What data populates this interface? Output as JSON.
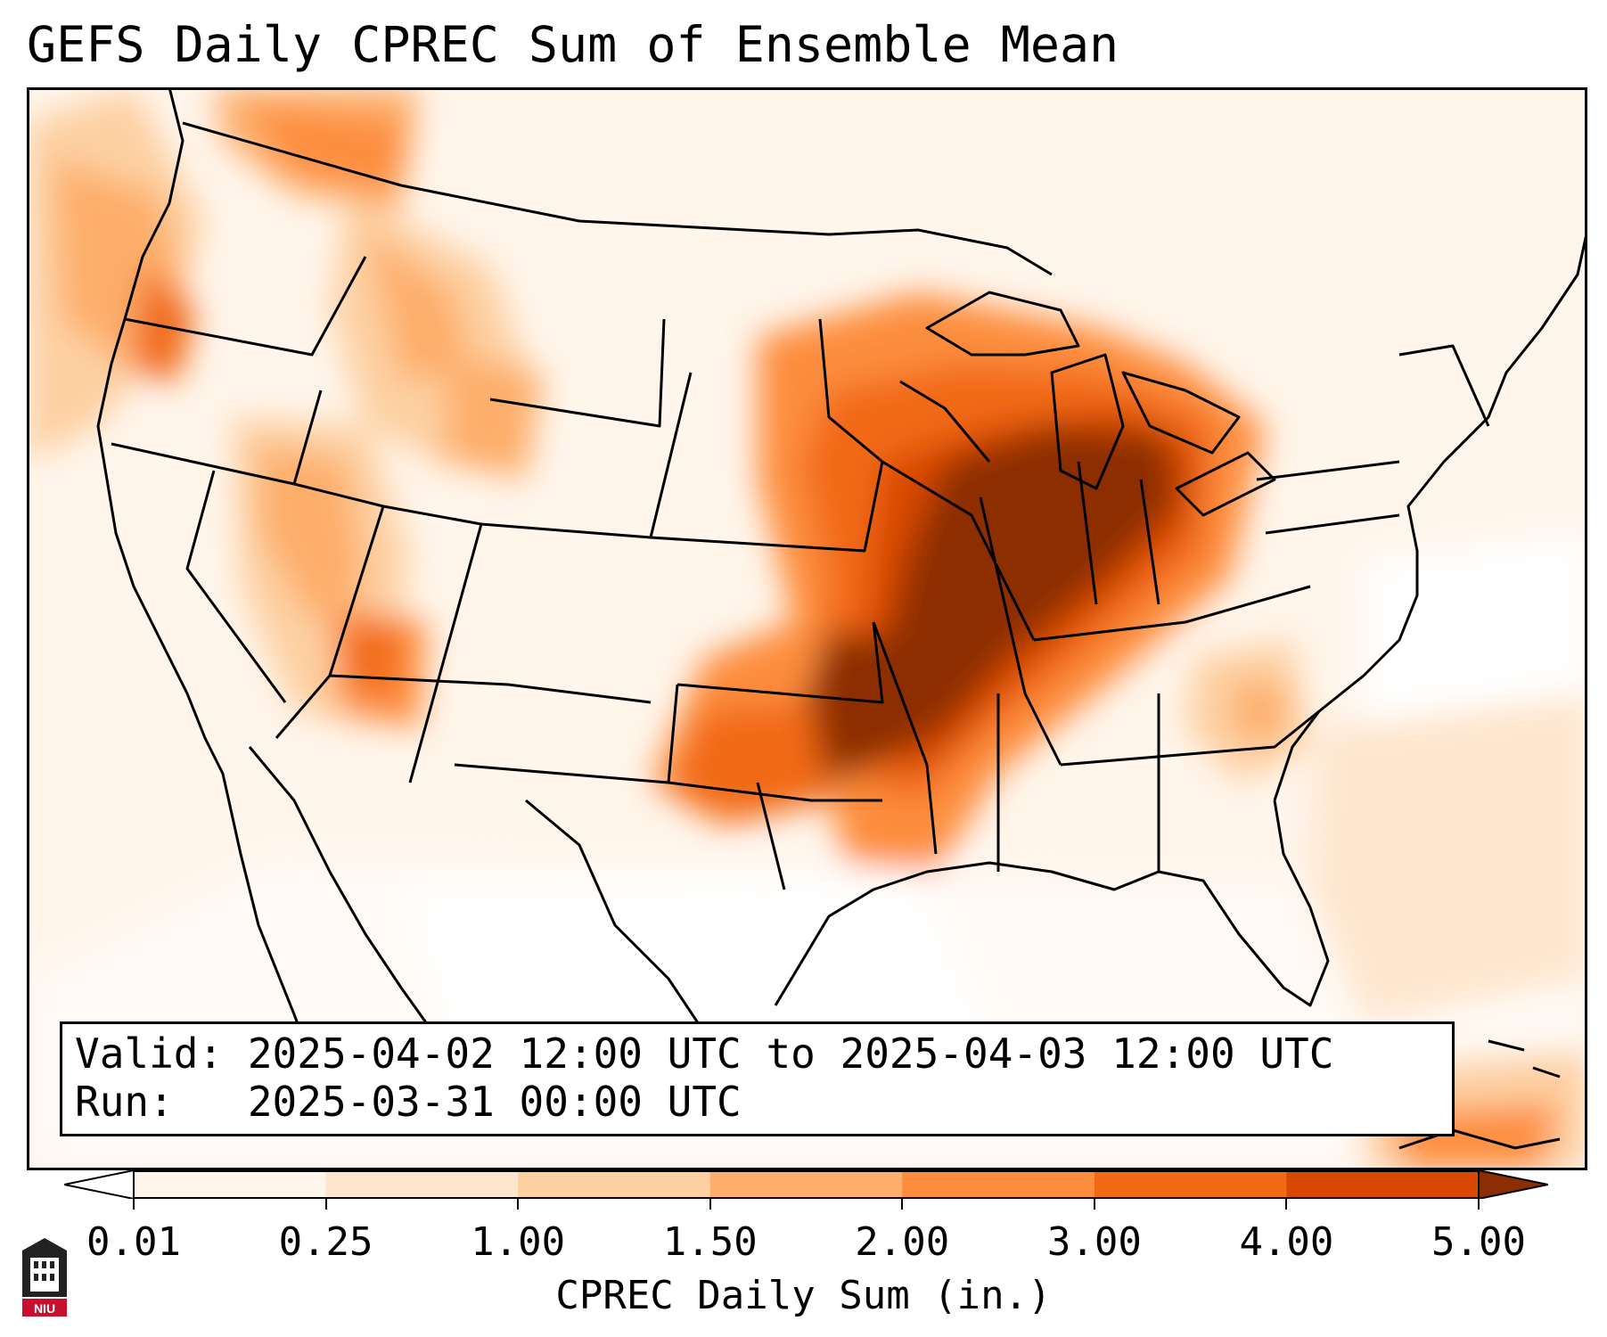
{
  "title": "GEFS Daily CPREC Sum of Ensemble Mean",
  "info": {
    "valid": "Valid: 2025-04-02 12:00 UTC to 2025-04-03 12:00 UTC",
    "run": "Run:   2025-03-31 00:00 UTC"
  },
  "colorbar": {
    "label": "CPREC Daily Sum (in.)",
    "ticks": [
      "0.01",
      "0.25",
      "1.00",
      "1.50",
      "2.00",
      "3.00",
      "4.00",
      "5.00"
    ],
    "colors": [
      "#fff5eb",
      "#fee6ce",
      "#fdd0a2",
      "#fdae6b",
      "#fd8d3c",
      "#f16913",
      "#d94801",
      "#8c2d04"
    ]
  },
  "logo": {
    "text": "NIU",
    "accent": "#c8102e"
  }
}
